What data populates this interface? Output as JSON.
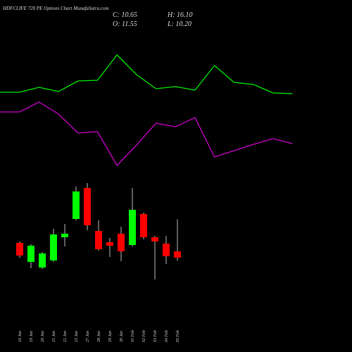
{
  "chart_data": [
    {
      "type": "candlestick",
      "title": "HDFCLIFE 720 PE Options Chart MunafaSutra.com",
      "info": [
        "C: 10.65",
        "H: 16.10",
        "O: 11.55",
        "L: 10.20"
      ],
      "categories": [
        "16 Jan",
        "19 Jan",
        "20 Jan",
        "21 Jan",
        "22 Jan",
        "23 Jan",
        "27 Jan",
        "28 Jan",
        "29 Jan",
        "30 Jan",
        "01 Feb",
        "02 Feb",
        "03 Feb",
        "04 Feb",
        "05 Feb"
      ],
      "open": [
        12.75,
        10.05,
        9.25,
        10.25,
        13.55,
        16.15,
        20.55,
        14.45,
        12.85,
        14.05,
        12.45,
        16.85,
        13.55,
        12.65,
        11.55
      ],
      "high": [
        12.95,
        12.55,
        11.45,
        14.75,
        15.45,
        20.75,
        21.25,
        15.95,
        13.45,
        15.05,
        20.55,
        17.05,
        13.75,
        13.75,
        16.1
      ],
      "low": [
        10.65,
        9.15,
        9.05,
        10.05,
        12.25,
        15.95,
        14.55,
        11.65,
        10.75,
        10.15,
        12.25,
        13.25,
        7.55,
        9.75,
        10.2
      ],
      "close": [
        10.95,
        12.35,
        11.25,
        13.95,
        14.05,
        20.05,
        15.25,
        11.85,
        12.35,
        11.55,
        17.45,
        13.55,
        12.95,
        10.85,
        10.65
      ],
      "up_color": "#00ff00",
      "down_color": "#ff0000",
      "ylim": [
        7,
        22
      ]
    },
    {
      "type": "line",
      "series": [
        {
          "color": "#00ee00",
          "values": [
            59.5,
            59.5,
            63,
            60,
            67.5,
            68,
            86,
            72,
            62,
            63.5,
            61,
            78.5,
            66.5,
            65,
            59,
            58.5
          ]
        },
        {
          "color": "#cc00cc",
          "values": [
            45.5,
            45.5,
            52.5,
            44,
            30.5,
            31.5,
            7.5,
            22,
            37.5,
            35,
            41.5,
            13.5,
            18,
            22.5,
            26.5,
            23
          ]
        }
      ],
      "ylim": [
        0,
        100
      ]
    }
  ]
}
